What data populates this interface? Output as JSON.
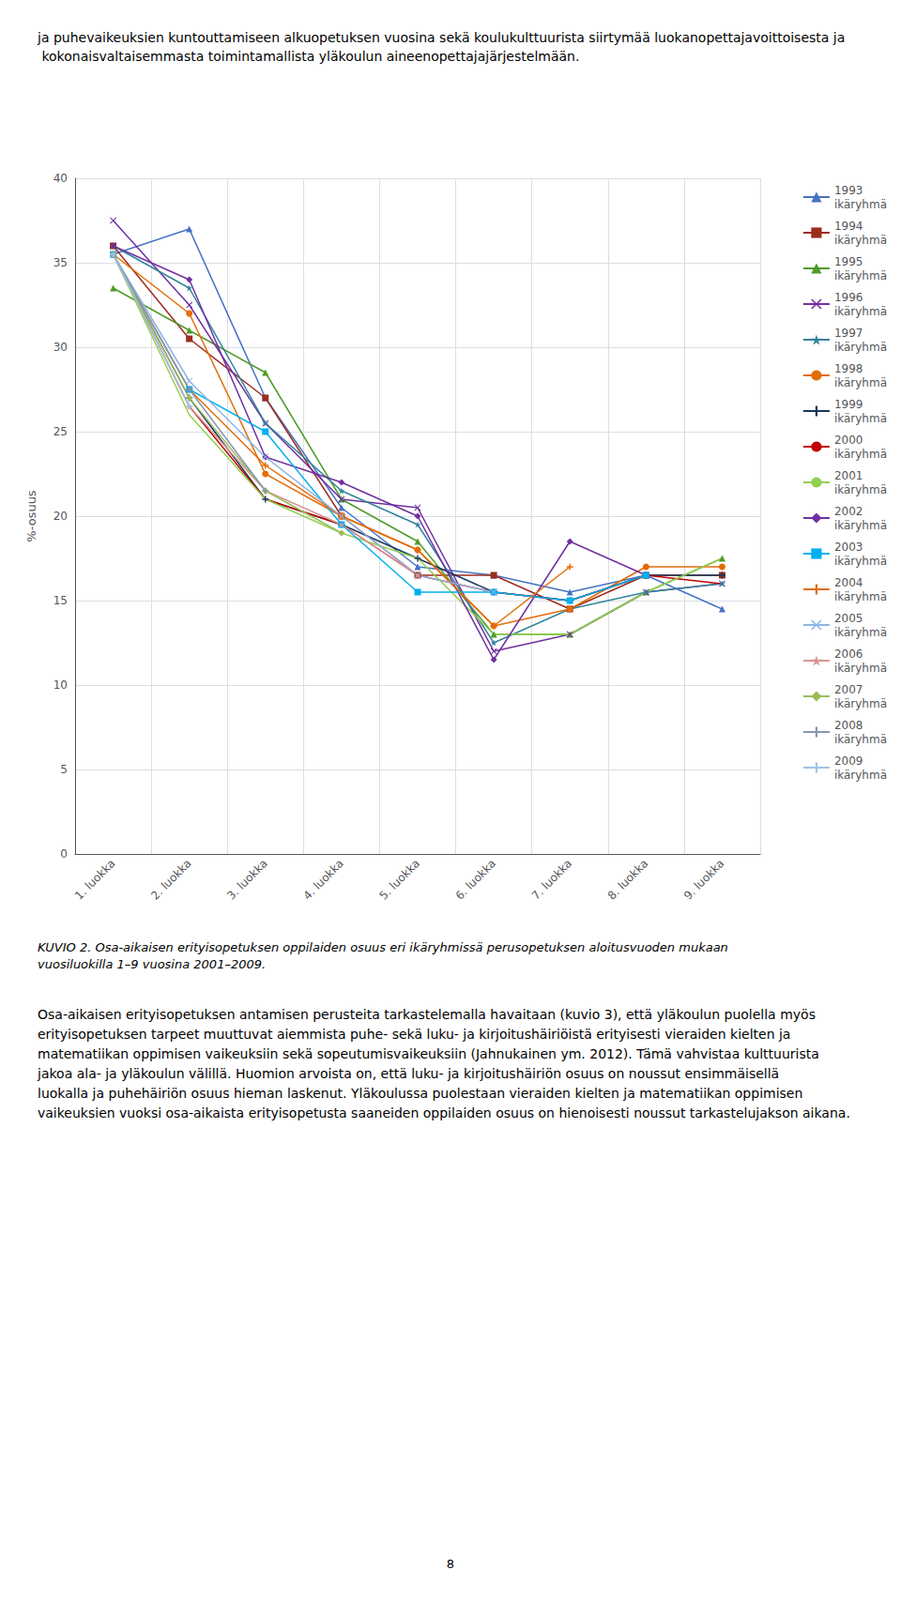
{
  "chart_data": {
    "type": "line",
    "ylabel": "%-osuus",
    "categories": [
      "1. luokka",
      "2. luokka",
      "3. luokka",
      "4. luokka",
      "5. luokka",
      "6. luokka",
      "7. luokka",
      "8. luokka",
      "9. luokka"
    ],
    "ylim": [
      0,
      40
    ],
    "yticks": [
      0,
      5,
      10,
      15,
      20,
      25,
      30,
      35,
      40
    ],
    "grid": true,
    "legend": "right",
    "series": [
      {
        "name": "1993\nikäryhmä",
        "color": "#4472C4",
        "marker": "triangle",
        "values": [
          35.5,
          37.0,
          27.0,
          20.5,
          17.0,
          16.5,
          15.5,
          16.5,
          14.5
        ]
      },
      {
        "name": "1994\nikäryhmä",
        "color": "#9B2D1F",
        "marker": "square",
        "values": [
          36.0,
          30.5,
          27.0,
          20.0,
          16.5,
          16.5,
          14.5,
          16.5,
          16.5
        ]
      },
      {
        "name": "1995\nikäryhmä",
        "color": "#4E9A28",
        "marker": "triangle",
        "values": [
          33.5,
          31.0,
          28.5,
          21.0,
          18.5,
          13.0,
          13.0,
          15.5,
          17.5
        ]
      },
      {
        "name": "1996\nikäryhmä",
        "color": "#7030A0",
        "marker": "x",
        "values": [
          37.5,
          32.5,
          25.5,
          21.0,
          20.5,
          12.0,
          13.0,
          15.5,
          16.0
        ]
      },
      {
        "name": "1997\nikäryhmä",
        "color": "#31849B",
        "marker": "star",
        "values": [
          36.0,
          33.5,
          25.5,
          21.5,
          19.5,
          12.5,
          14.5,
          15.5,
          16.0
        ]
      },
      {
        "name": "1998\nikäryhmä",
        "color": "#E36C09",
        "marker": "circle",
        "values": [
          35.5,
          32.0,
          22.5,
          20.0,
          18.0,
          13.5,
          14.5,
          17.0,
          17.0
        ]
      },
      {
        "name": "1999\nikäryhmä",
        "color": "#17375E",
        "marker": "plus",
        "values": [
          35.5,
          27.0,
          21.0,
          19.5,
          17.5,
          15.5,
          15.0,
          16.5,
          16.5
        ]
      },
      {
        "name": "2000\nikäryhmä",
        "color": "#C00000",
        "marker": "none",
        "values": [
          35.5,
          26.5,
          21.0,
          19.5,
          16.5,
          15.5,
          15.0,
          16.5,
          16.0
        ]
      },
      {
        "name": "2001\nikäryhmä",
        "color": "#92D050",
        "marker": "none",
        "values": [
          35.5,
          26.0,
          21.0,
          19.0,
          17.5,
          13.0,
          13.0,
          15.5,
          17.5
        ]
      },
      {
        "name": "2002\nikäryhmä",
        "color": "#7030A0",
        "marker": "diamond",
        "values": [
          36.0,
          34.0,
          23.5,
          22.0,
          20.0,
          11.5,
          18.5,
          16.5,
          null
        ]
      },
      {
        "name": "2003\nikäryhmä",
        "color": "#00B0F0",
        "marker": "square",
        "values": [
          35.5,
          27.5,
          25.0,
          19.5,
          15.5,
          15.5,
          15.0,
          16.5,
          null
        ]
      },
      {
        "name": "2004\nikäryhmä",
        "color": "#E36C09",
        "marker": "plus",
        "values": [
          35.5,
          27.5,
          23.0,
          20.0,
          18.0,
          13.5,
          17.0,
          null,
          null
        ]
      },
      {
        "name": "2005\nikäryhmä",
        "color": "#8EB4E3",
        "marker": "x",
        "values": [
          35.5,
          28.0,
          23.5,
          20.0,
          16.5,
          15.5,
          null,
          null,
          null
        ]
      },
      {
        "name": "2006\nikäryhmä",
        "color": "#D99694",
        "marker": "star",
        "values": [
          35.5,
          26.5,
          21.5,
          19.5,
          16.5,
          null,
          null,
          null,
          null
        ]
      },
      {
        "name": "2007\nikäryhmä",
        "color": "#9BBB59",
        "marker": "diamond",
        "values": [
          35.5,
          27.0,
          21.5,
          19.0,
          null,
          null,
          null,
          null,
          null
        ]
      },
      {
        "name": "2008\nikäryhmä",
        "color": "#8496B0",
        "marker": "plus",
        "values": [
          35.5,
          27.5,
          21.5,
          null,
          null,
          null,
          null,
          null,
          null
        ]
      },
      {
        "name": "2009\nikäryhmä",
        "color": "#9DC3E6",
        "marker": "plus",
        "values": [
          35.5,
          26.5,
          null,
          null,
          null,
          null,
          null,
          null,
          null
        ]
      }
    ],
    "annotations": [
      "ja puhevaikeuksien kuntouttamiseen alkuopetuksen vuosina sekä koulukulttuurista siirtymää luokanopettajavoittoisesta ja kokonaisvaltaisemmasta toimintamallista yläkoulun aineenopettajajärjestelmään.",
      "KUVIO 2. Osa-aikaisen erityisopetuksen oppilaiden osuus eri ikäryhmissä perusopetuksen aloitusvuoden mukaan vuosiluokilla 1–9 vuosina 2001–2009.",
      "Osa-aikaisen erityisopetuksen antamisen perusteita tarkastelemalla havaitaan (kuvio 3), että yläkoulun puolella myös erityisopetuksen tarpeet muuttuvat aiemmista puhe- sekä luku- ja kirjoitushäiriöistä erityisesti vieraiden kielten ja matematiikan oppimisen vaikeuksiin sekä sopeutumisvaikeuksiin (Jahnukainen ym. 2012). Tämä vahvistaa kulttuurista jakoa ala- ja yläkoulun välillä. Huomion arvoista on, että luku- ja kirjoitushäiriön osuus on noussut ensimmäisellä luokalla ja puhehäiriön osuus hieman laskenut. Yläkoulussa puolestaan vieraiden kielten ja matematiikan oppimisen vaikeuksien vuoksi osa-aikaista erityisopetusta saaneiden oppilaiden osuus on hienoisesti noussut tarkastelujakson aikana.",
      "8"
    ]
  }
}
